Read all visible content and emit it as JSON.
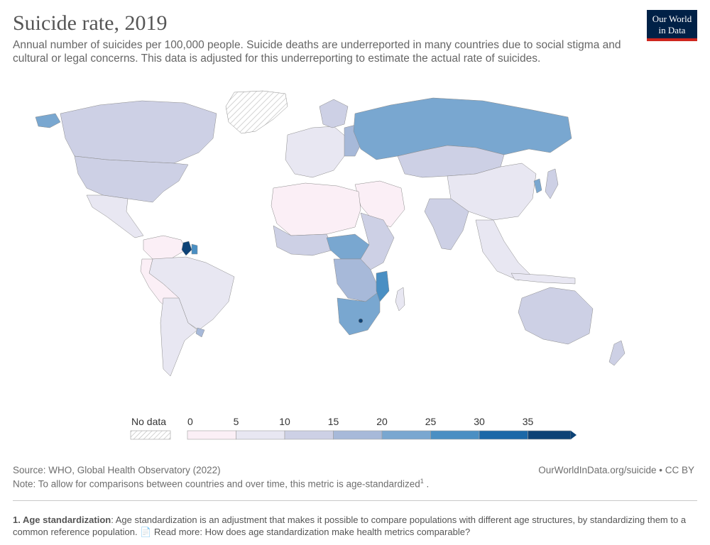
{
  "header": {
    "title": "Suicide rate, 2019",
    "subtitle": "Annual number of suicides per 100,000 people. Suicide deaths are underreported in many countries due to social stigma and cultural or legal concerns. This data is adjusted for this underreporting to estimate the actual rate of suicides.",
    "logo_line1": "Our World",
    "logo_line2": "in Data"
  },
  "legend": {
    "no_data_label": "No data",
    "ticks": [
      "0",
      "5",
      "10",
      "15",
      "20",
      "25",
      "30",
      "35"
    ],
    "colors": [
      "#fbeff6",
      "#e8e7f2",
      "#cdd0e5",
      "#a7b9d9",
      "#79a7d0",
      "#4a8fc3",
      "#1b68a8",
      "#0d4276"
    ]
  },
  "map": {
    "ocean_color": "#ffffff",
    "no_data_pattern": "hatched",
    "highlighted_regions": [
      "Guyana",
      "Suriname",
      "Russia",
      "Lesotho",
      "Eswatini",
      "South Africa",
      "South Korea",
      "Greenland (no data)"
    ]
  },
  "footer": {
    "source": "Source: WHO, Global Health Observatory (2022)",
    "url_license": "OurWorldInData.org/suicide • CC BY",
    "note_text": "Note: To allow for comparisons between countries and over time, this metric is age-standardized",
    "note_sup": "1",
    "note_end": " ."
  },
  "footnote": {
    "label": "1. Age standardization",
    "text": ": Age standardization is an adjustment that makes it possible to compare populations with different age structures, by standardizing them to a common reference population.",
    "read_more": "Read more: How does age standardization make health metrics comparable?"
  }
}
